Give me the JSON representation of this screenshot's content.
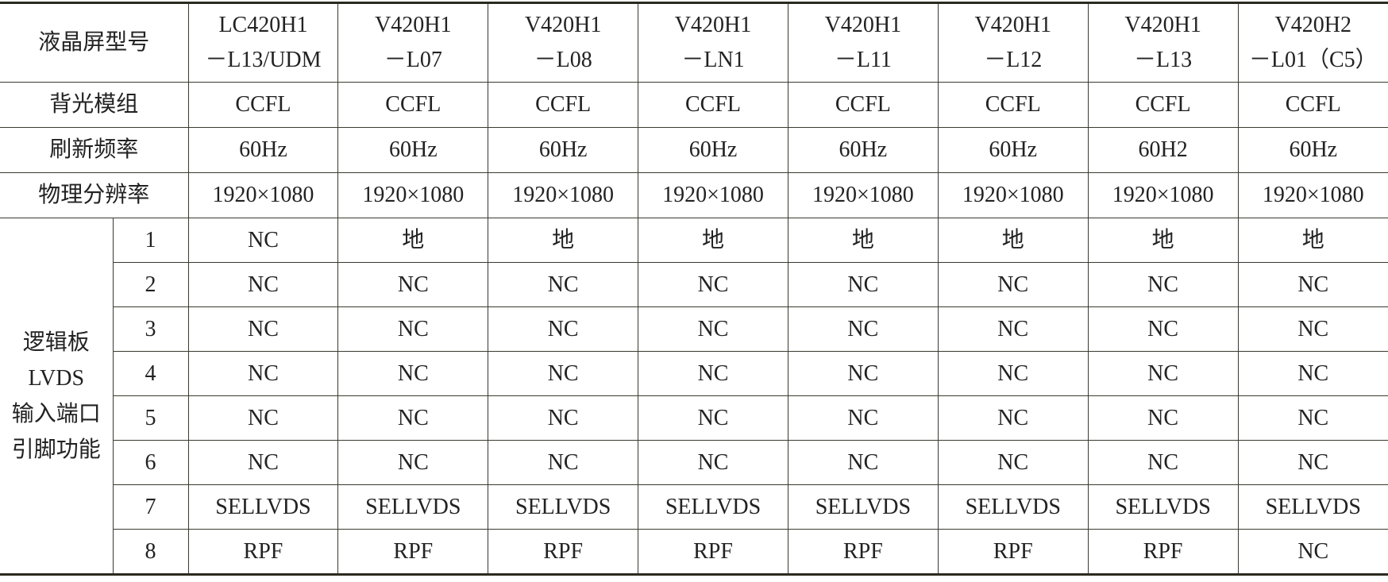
{
  "table": {
    "row_headers": [
      "液晶屏型号",
      "背光模组",
      "刷新频率",
      "物理分辨率"
    ],
    "models": [
      [
        "LC420H1",
        "－L13/UDM"
      ],
      [
        "V420H1",
        "－L07"
      ],
      [
        "V420H1",
        "－L08"
      ],
      [
        "V420H1",
        "－LN1"
      ],
      [
        "V420H1",
        "－L11"
      ],
      [
        "V420H1",
        "－L12"
      ],
      [
        "V420H1",
        "－L13"
      ],
      [
        "V420H2",
        "－L01（C5）"
      ]
    ],
    "backlight": [
      "CCFL",
      "CCFL",
      "CCFL",
      "CCFL",
      "CCFL",
      "CCFL",
      "CCFL",
      "CCFL"
    ],
    "refresh": [
      "60Hz",
      "60Hz",
      "60Hz",
      "60Hz",
      "60Hz",
      "60Hz",
      "60H2",
      "60Hz"
    ],
    "resolution": [
      "1920×1080",
      "1920×1080",
      "1920×1080",
      "1920×1080",
      "1920×1080",
      "1920×1080",
      "1920×1080",
      "1920×1080"
    ],
    "pin_group_label": [
      "逻辑板",
      "LVDS",
      "输入端口",
      "引脚功能"
    ],
    "pins": [
      {
        "pin": "1",
        "values": [
          "NC",
          "地",
          "地",
          "地",
          "地",
          "地",
          "地",
          "地"
        ]
      },
      {
        "pin": "2",
        "values": [
          "NC",
          "NC",
          "NC",
          "NC",
          "NC",
          "NC",
          "NC",
          "NC"
        ]
      },
      {
        "pin": "3",
        "values": [
          "NC",
          "NC",
          "NC",
          "NC",
          "NC",
          "NC",
          "NC",
          "NC"
        ]
      },
      {
        "pin": "4",
        "values": [
          "NC",
          "NC",
          "NC",
          "NC",
          "NC",
          "NC",
          "NC",
          "NC"
        ]
      },
      {
        "pin": "5",
        "values": [
          "NC",
          "NC",
          "NC",
          "NC",
          "NC",
          "NC",
          "NC",
          "NC"
        ]
      },
      {
        "pin": "6",
        "values": [
          "NC",
          "NC",
          "NC",
          "NC",
          "NC",
          "NC",
          "NC",
          "NC"
        ]
      },
      {
        "pin": "7",
        "values": [
          "SELLVDS",
          "SELLVDS",
          "SELLVDS",
          "SELLVDS",
          "SELLVDS",
          "SELLVDS",
          "SELLVDS",
          "SELLVDS"
        ]
      },
      {
        "pin": "8",
        "values": [
          "RPF",
          "RPF",
          "RPF",
          "RPF",
          "RPF",
          "RPF",
          "RPF",
          "NC"
        ]
      }
    ]
  }
}
